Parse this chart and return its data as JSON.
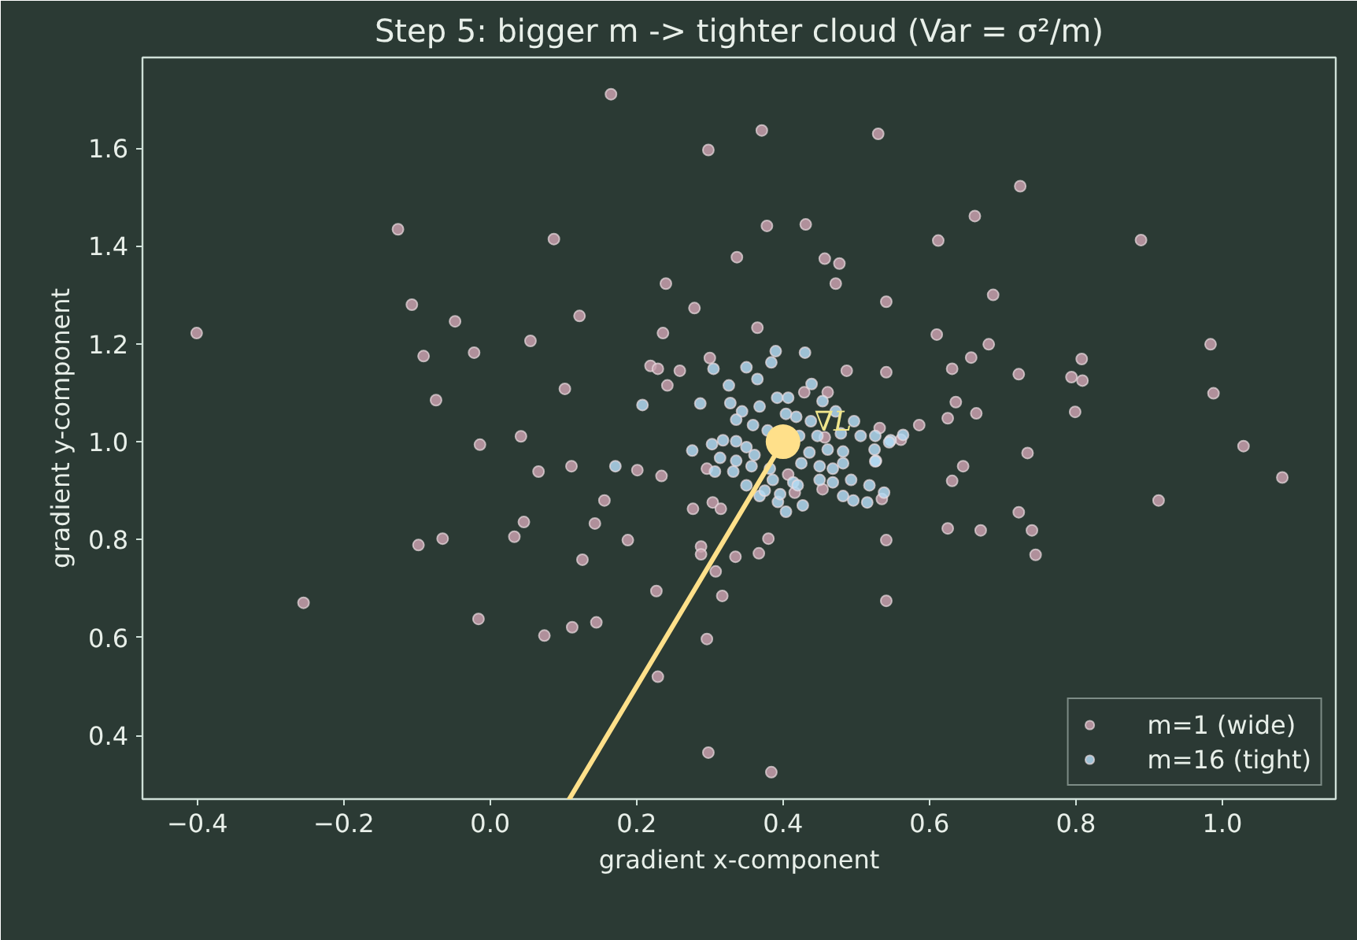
{
  "chart_data": {
    "type": "scatter",
    "title": "Step 5: bigger m -> tighter cloud (Var = σ²/m)",
    "xlabel": "gradient x-component",
    "ylabel": "gradient y-component",
    "xlim": [
      -0.475,
      1.155
    ],
    "ylim": [
      0.27,
      1.785
    ],
    "xticks": [
      {
        "value": -0.4,
        "label": "−0.4"
      },
      {
        "value": -0.2,
        "label": "−0.2"
      },
      {
        "value": 0,
        "label": "0.0"
      },
      0.2,
      0.4,
      0.6,
      0.8,
      {
        "value": 1,
        "label": "1.0"
      }
    ],
    "yticks": [
      0.4,
      0.6,
      0.8,
      {
        "value": 1,
        "label": "1.0"
      },
      1.2,
      1.4,
      1.6
    ],
    "grid": false,
    "legend": "bottom right",
    "marker": "circle",
    "annotations": [
      {
        "text": "∇L",
        "x": 0.4,
        "y": 1.0
      }
    ],
    "series": [
      {
        "name": "m=1 (wide)",
        "color": "#c8a0ae",
        "x": [
          -0.126,
          0.087,
          -0.107,
          -0.048,
          0.122,
          -0.401,
          -0.091,
          -0.022,
          0.055,
          -0.074,
          0.102,
          -0.014,
          0.042,
          0.066,
          0.111,
          0.165,
          0.371,
          0.298,
          0.53,
          0.724,
          0.662,
          0.612,
          0.378,
          0.431,
          0.337,
          0.457,
          0.477,
          0.472,
          0.24,
          0.541,
          0.687,
          0.279,
          0.365,
          0.236,
          0.61,
          0.681,
          0.657,
          0.3,
          0.219,
          0.229,
          0.259,
          0.242,
          0.487,
          0.541,
          0.631,
          0.722,
          0.636,
          0.625,
          0.664,
          0.586,
          0.734,
          0.646,
          0.429,
          0.461,
          0.532,
          0.561,
          0.457,
          0.201,
          0.889,
          0.984,
          0.988,
          0.808,
          0.794,
          0.809,
          0.799,
          1.029,
          1.082,
          0.913,
          0.722,
          0.74,
          0.745,
          0.046,
          0.033,
          -0.098,
          -0.065,
          0.143,
          0.126,
          -0.255,
          -0.016,
          0.074,
          0.112,
          0.145,
          0.234,
          0.156,
          0.188,
          0.277,
          0.304,
          0.315,
          0.288,
          0.288,
          0.335,
          0.367,
          0.38,
          0.308,
          0.227,
          0.317,
          0.296,
          0.229,
          0.541,
          0.541,
          0.631,
          0.625,
          0.67,
          0.298,
          0.384,
          0.454,
          0.535,
          0.416,
          0.296,
          0.407
        ],
        "values": [
          1.434,
          1.414,
          1.28,
          1.246,
          1.257,
          1.222,
          1.175,
          1.182,
          1.206,
          1.085,
          1.108,
          0.994,
          1.011,
          0.939,
          0.95,
          1.71,
          1.636,
          1.596,
          1.629,
          1.522,
          1.461,
          1.411,
          1.441,
          1.444,
          1.377,
          1.374,
          1.364,
          1.323,
          1.323,
          1.286,
          1.3,
          1.273,
          1.233,
          1.222,
          1.219,
          1.199,
          1.172,
          1.171,
          1.155,
          1.149,
          1.145,
          1.115,
          1.145,
          1.142,
          1.149,
          1.138,
          1.081,
          1.048,
          1.058,
          1.034,
          0.977,
          0.95,
          1.101,
          1.101,
          1.028,
          1.004,
          1.009,
          0.942,
          1.412,
          1.199,
          1.099,
          1.169,
          1.132,
          1.125,
          1.061,
          0.991,
          0.927,
          0.88,
          0.856,
          0.819,
          0.769,
          0.836,
          0.806,
          0.789,
          0.802,
          0.833,
          0.759,
          0.671,
          0.638,
          0.604,
          0.621,
          0.631,
          0.93,
          0.88,
          0.799,
          0.863,
          0.876,
          0.863,
          0.786,
          0.77,
          0.765,
          0.772,
          0.802,
          0.735,
          0.695,
          0.685,
          0.597,
          0.52,
          0.799,
          0.675,
          0.92,
          0.823,
          0.819,
          0.365,
          0.325,
          0.903,
          0.883,
          0.896,
          0.945,
          0.933
        ]
      },
      {
        "name": "m=16 (tight)",
        "color": "#b3d9f2",
        "x": [
          0.384,
          0.439,
          0.328,
          0.344,
          0.368,
          0.392,
          0.407,
          0.454,
          0.336,
          0.359,
          0.418,
          0.438,
          0.472,
          0.497,
          0.422,
          0.447,
          0.479,
          0.506,
          0.526,
          0.547,
          0.276,
          0.303,
          0.318,
          0.336,
          0.35,
          0.314,
          0.336,
          0.361,
          0.436,
          0.461,
          0.482,
          0.525,
          0.307,
          0.332,
          0.357,
          0.382,
          0.425,
          0.45,
          0.468,
          0.482,
          0.527,
          0.35,
          0.386,
          0.414,
          0.45,
          0.468,
          0.493,
          0.518,
          0.368,
          0.42,
          0.482,
          0.393,
          0.375,
          0.404,
          0.379,
          0.208,
          0.39,
          0.43,
          0.305,
          0.35,
          0.365,
          0.326,
          0.287,
          0.564,
          0.545,
          0.171,
          0.404,
          0.427,
          0.496,
          0.515,
          0.538,
          0.396,
          0.526
        ],
        "values": [
          1.162,
          1.118,
          1.079,
          1.062,
          1.072,
          1.09,
          1.09,
          1.083,
          1.045,
          1.034,
          1.051,
          1.042,
          1.062,
          1.042,
          1.012,
          1.012,
          1.017,
          1.012,
          1.012,
          1.003,
          0.982,
          0.995,
          1.003,
          1.001,
          0.989,
          0.967,
          0.961,
          0.973,
          0.978,
          0.984,
          0.98,
          0.984,
          0.939,
          0.939,
          0.95,
          0.945,
          0.956,
          0.95,
          0.945,
          0.956,
          0.961,
          0.911,
          0.922,
          0.917,
          0.922,
          0.917,
          0.922,
          0.911,
          0.889,
          0.911,
          0.889,
          0.877,
          0.9,
          1.057,
          1.023,
          1.075,
          1.185,
          1.182,
          1.149,
          1.152,
          1.128,
          1.115,
          1.078,
          1.014,
          0.999,
          0.95,
          0.857,
          0.87,
          0.88,
          0.876,
          0.896,
          0.893,
          0.96
        ]
      },
      {
        "type": "line",
        "marker": "none",
        "color": "#ffe08a",
        "x": [
          0.108,
          0.4
        ],
        "values": [
          0.27,
          1.0
        ]
      },
      {
        "type": "bubble",
        "color": "#ffe08a",
        "x": [
          0.4
        ],
        "values": [
          1.0
        ],
        "sizes": [
          1
        ]
      }
    ]
  }
}
